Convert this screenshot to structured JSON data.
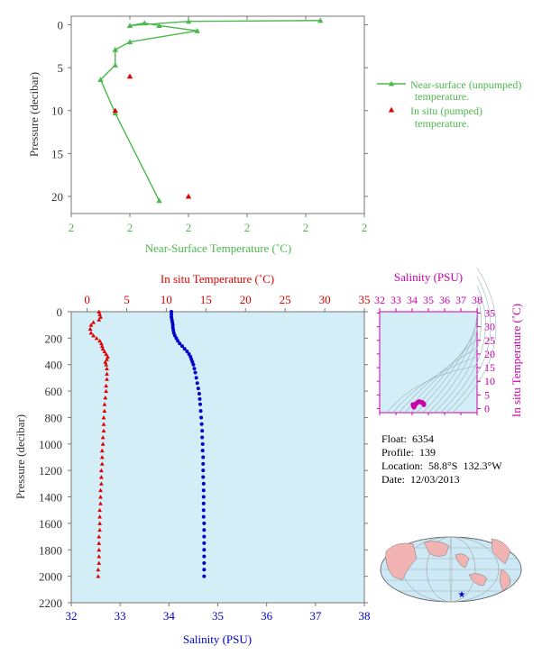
{
  "colors": {
    "near_surface": "#4db84d",
    "in_situ_temp": "#e00000",
    "salinity": "#0000cc",
    "salinity_panel": "#cc00aa",
    "axis_text": "#333333",
    "profile_bg": "#d4eef7",
    "map_ocean": "#cde9f5",
    "map_land": "#f2b3b3"
  },
  "float_info": {
    "float": "Float:  6354",
    "profile": "Profile:  139",
    "location": "Location:  58.8°S  132.3°W",
    "date": "Date:  12/03/2013"
  },
  "chart_data": [
    {
      "type": "line",
      "name": "near-surface",
      "xlabel": "Near-Surface Temperature (˚C)",
      "ylabel": "Pressure (decibar)",
      "xticks": [
        "2",
        "2",
        "2",
        "2",
        "2",
        "2"
      ],
      "yticks": [
        0,
        5,
        10,
        15,
        20
      ],
      "xlim": [
        0,
        10
      ],
      "ylim": [
        22,
        -1
      ],
      "y_inverted": true,
      "series": [
        {
          "name": "Near-surface (unpumped) temperature.",
          "marker": "triangle",
          "line": true,
          "points": [
            [
              8.5,
              -0.5
            ],
            [
              4,
              -0.4
            ],
            [
              2,
              0.1
            ],
            [
              2.5,
              -0.2
            ],
            [
              3,
              0.1
            ],
            [
              4.3,
              0.7
            ],
            [
              2,
              2.0
            ],
            [
              1.5,
              2.9
            ],
            [
              1.5,
              4.7
            ],
            [
              1,
              6.4
            ],
            [
              1.5,
              10.3
            ],
            [
              3,
              20.5
            ]
          ]
        },
        {
          "name": "In situ (pumped) temperature.",
          "marker": "triangle",
          "line": false,
          "points": [
            [
              2,
              6.0
            ],
            [
              1.5,
              10.0
            ],
            [
              4,
              20.0
            ]
          ]
        }
      ],
      "legend": "right"
    },
    {
      "type": "line",
      "name": "profile",
      "ylabel": "Pressure (decibar)",
      "top_xlabel": "In situ Temperature (˚C)",
      "bottom_xlabel": "Salinity (PSU)",
      "temp_ticks": [
        0,
        5,
        10,
        15,
        20,
        25,
        30,
        35
      ],
      "salinity_ticks": [
        32,
        33,
        34,
        35,
        36,
        37,
        38
      ],
      "pressure_ticks": [
        0,
        200,
        400,
        600,
        800,
        1000,
        1200,
        1400,
        1600,
        1800,
        2000,
        2200
      ],
      "temp_lim": [
        -2,
        35
      ],
      "salinity_lim": [
        32,
        38
      ],
      "pressure_lim": [
        0,
        2200
      ],
      "series": [
        {
          "name": "In situ Temperature",
          "marker": "triangle",
          "points": [
            [
              1.5,
              0
            ],
            [
              1.6,
              20
            ],
            [
              1.7,
              40
            ],
            [
              1.5,
              60
            ],
            [
              0.8,
              80
            ],
            [
              0.5,
              100
            ],
            [
              0.4,
              130
            ],
            [
              0.5,
              160
            ],
            [
              0.8,
              180
            ],
            [
              1.2,
              200
            ],
            [
              1.6,
              220
            ],
            [
              1.8,
              240
            ],
            [
              1.9,
              260
            ],
            [
              2.0,
              280
            ],
            [
              2.2,
              300
            ],
            [
              2.4,
              320
            ],
            [
              2.6,
              340
            ],
            [
              2.5,
              360
            ],
            [
              2.3,
              380
            ],
            [
              2.4,
              400
            ],
            [
              2.5,
              430
            ],
            [
              2.5,
              470
            ],
            [
              2.5,
              510
            ],
            [
              2.4,
              560
            ],
            [
              2.4,
              600
            ],
            [
              2.3,
              650
            ],
            [
              2.2,
              700
            ],
            [
              2.2,
              750
            ],
            [
              2.1,
              800
            ],
            [
              2.1,
              850
            ],
            [
              2.1,
              900
            ],
            [
              2.0,
              950
            ],
            [
              2.0,
              1000
            ],
            [
              1.9,
              1050
            ],
            [
              1.9,
              1100
            ],
            [
              1.9,
              1150
            ],
            [
              1.8,
              1200
            ],
            [
              1.8,
              1250
            ],
            [
              1.8,
              1300
            ],
            [
              1.7,
              1350
            ],
            [
              1.7,
              1400
            ],
            [
              1.7,
              1450
            ],
            [
              1.6,
              1500
            ],
            [
              1.6,
              1550
            ],
            [
              1.6,
              1600
            ],
            [
              1.6,
              1650
            ],
            [
              1.5,
              1700
            ],
            [
              1.5,
              1750
            ],
            [
              1.5,
              1800
            ],
            [
              1.5,
              1850
            ],
            [
              1.5,
              1900
            ],
            [
              1.4,
              1950
            ],
            [
              1.4,
              2000
            ]
          ]
        },
        {
          "name": "Salinity",
          "marker": "dot",
          "points": [
            [
              34.05,
              0
            ],
            [
              34.05,
              20
            ],
            [
              34.05,
              40
            ],
            [
              34.06,
              60
            ],
            [
              34.07,
              80
            ],
            [
              34.08,
              100
            ],
            [
              34.08,
              120
            ],
            [
              34.09,
              140
            ],
            [
              34.1,
              160
            ],
            [
              34.12,
              180
            ],
            [
              34.15,
              200
            ],
            [
              34.18,
              220
            ],
            [
              34.22,
              240
            ],
            [
              34.27,
              260
            ],
            [
              34.32,
              280
            ],
            [
              34.37,
              300
            ],
            [
              34.41,
              320
            ],
            [
              34.44,
              340
            ],
            [
              34.46,
              360
            ],
            [
              34.48,
              380
            ],
            [
              34.5,
              400
            ],
            [
              34.52,
              430
            ],
            [
              34.54,
              460
            ],
            [
              34.56,
              500
            ],
            [
              34.58,
              540
            ],
            [
              34.6,
              580
            ],
            [
              34.62,
              620
            ],
            [
              34.63,
              660
            ],
            [
              34.64,
              700
            ],
            [
              34.65,
              750
            ],
            [
              34.66,
              800
            ],
            [
              34.67,
              850
            ],
            [
              34.68,
              900
            ],
            [
              34.68,
              950
            ],
            [
              34.69,
              1000
            ],
            [
              34.69,
              1050
            ],
            [
              34.7,
              1100
            ],
            [
              34.7,
              1150
            ],
            [
              34.7,
              1200
            ],
            [
              34.7,
              1250
            ],
            [
              34.71,
              1300
            ],
            [
              34.71,
              1350
            ],
            [
              34.71,
              1400
            ],
            [
              34.71,
              1450
            ],
            [
              34.71,
              1500
            ],
            [
              34.71,
              1550
            ],
            [
              34.72,
              1600
            ],
            [
              34.72,
              1650
            ],
            [
              34.72,
              1700
            ],
            [
              34.72,
              1750
            ],
            [
              34.72,
              1800
            ],
            [
              34.72,
              1850
            ],
            [
              34.72,
              1900
            ],
            [
              34.72,
              1950
            ],
            [
              34.72,
              2000
            ]
          ]
        }
      ]
    },
    {
      "type": "scatter",
      "name": "ts-diagram",
      "top_xlabel": "Salinity (PSU)",
      "right_ylabel": "In situ Temperature (˚C)",
      "xticks": [
        32,
        33,
        34,
        35,
        36,
        37,
        38
      ],
      "yticks": [
        0,
        5,
        10,
        15,
        20,
        25,
        30,
        35
      ],
      "xlim": [
        32,
        38
      ],
      "ylim": [
        -1.5,
        35.5
      ],
      "points": [
        [
          34.05,
          1.5
        ],
        [
          34.08,
          0.8
        ],
        [
          34.12,
          0.5
        ],
        [
          34.18,
          1.2
        ],
        [
          34.27,
          1.9
        ],
        [
          34.37,
          2.4
        ],
        [
          34.44,
          2.6
        ],
        [
          34.5,
          2.4
        ],
        [
          34.58,
          2.3
        ],
        [
          34.65,
          2.1
        ],
        [
          34.69,
          1.9
        ],
        [
          34.71,
          1.7
        ],
        [
          34.72,
          1.5
        ],
        [
          34.72,
          1.4
        ]
      ]
    }
  ]
}
